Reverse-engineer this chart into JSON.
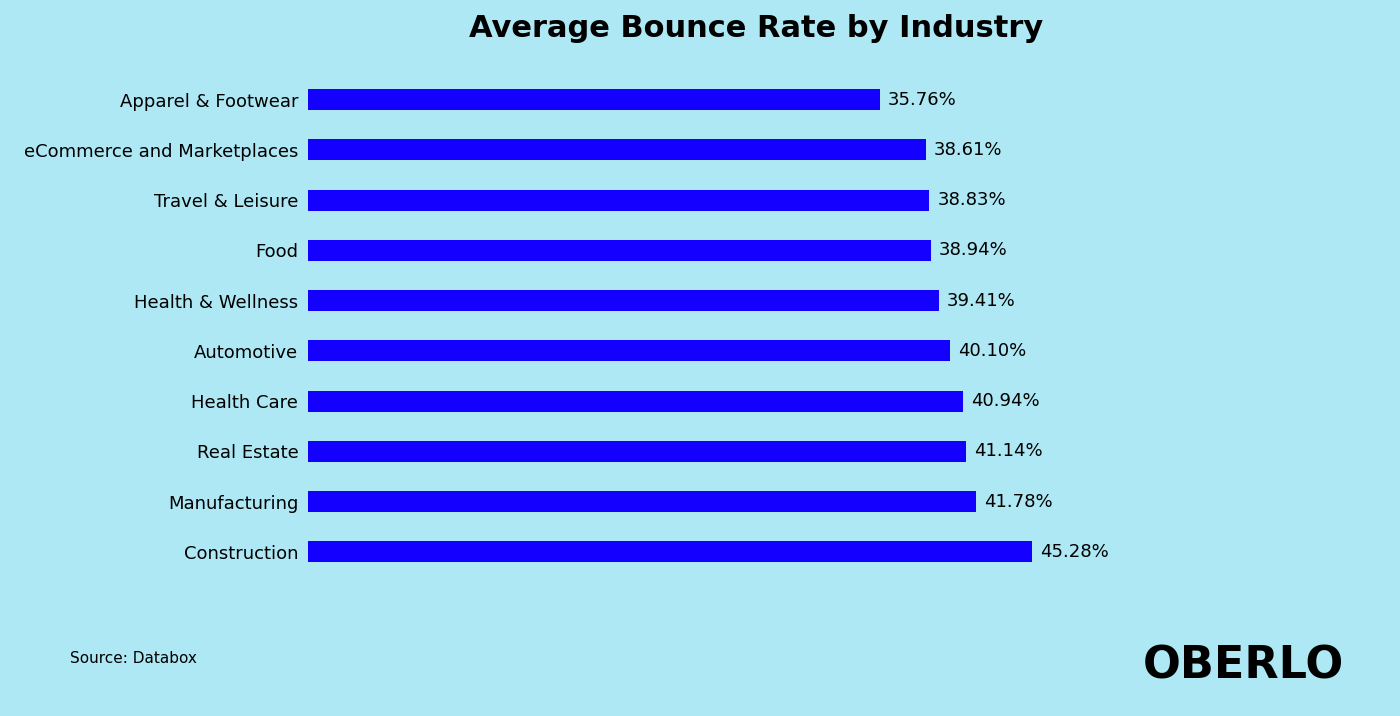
{
  "title": "Average Bounce Rate by Industry",
  "categories": [
    "Construction",
    "Manufacturing",
    "Real Estate",
    "Health Care",
    "Automotive",
    "Health & Wellness",
    "Food",
    "Travel & Leisure",
    "eCommerce and Marketplaces",
    "Apparel & Footwear"
  ],
  "values": [
    45.28,
    41.78,
    41.14,
    40.94,
    40.1,
    39.41,
    38.94,
    38.83,
    38.61,
    35.76
  ],
  "bar_color": "#1400FF",
  "background_color": "#ADE8F4",
  "title_fontsize": 22,
  "label_fontsize": 13,
  "value_fontsize": 13,
  "source_text": "Source: Databox",
  "brand_text": "OBERLO",
  "xlim": [
    0,
    56
  ]
}
